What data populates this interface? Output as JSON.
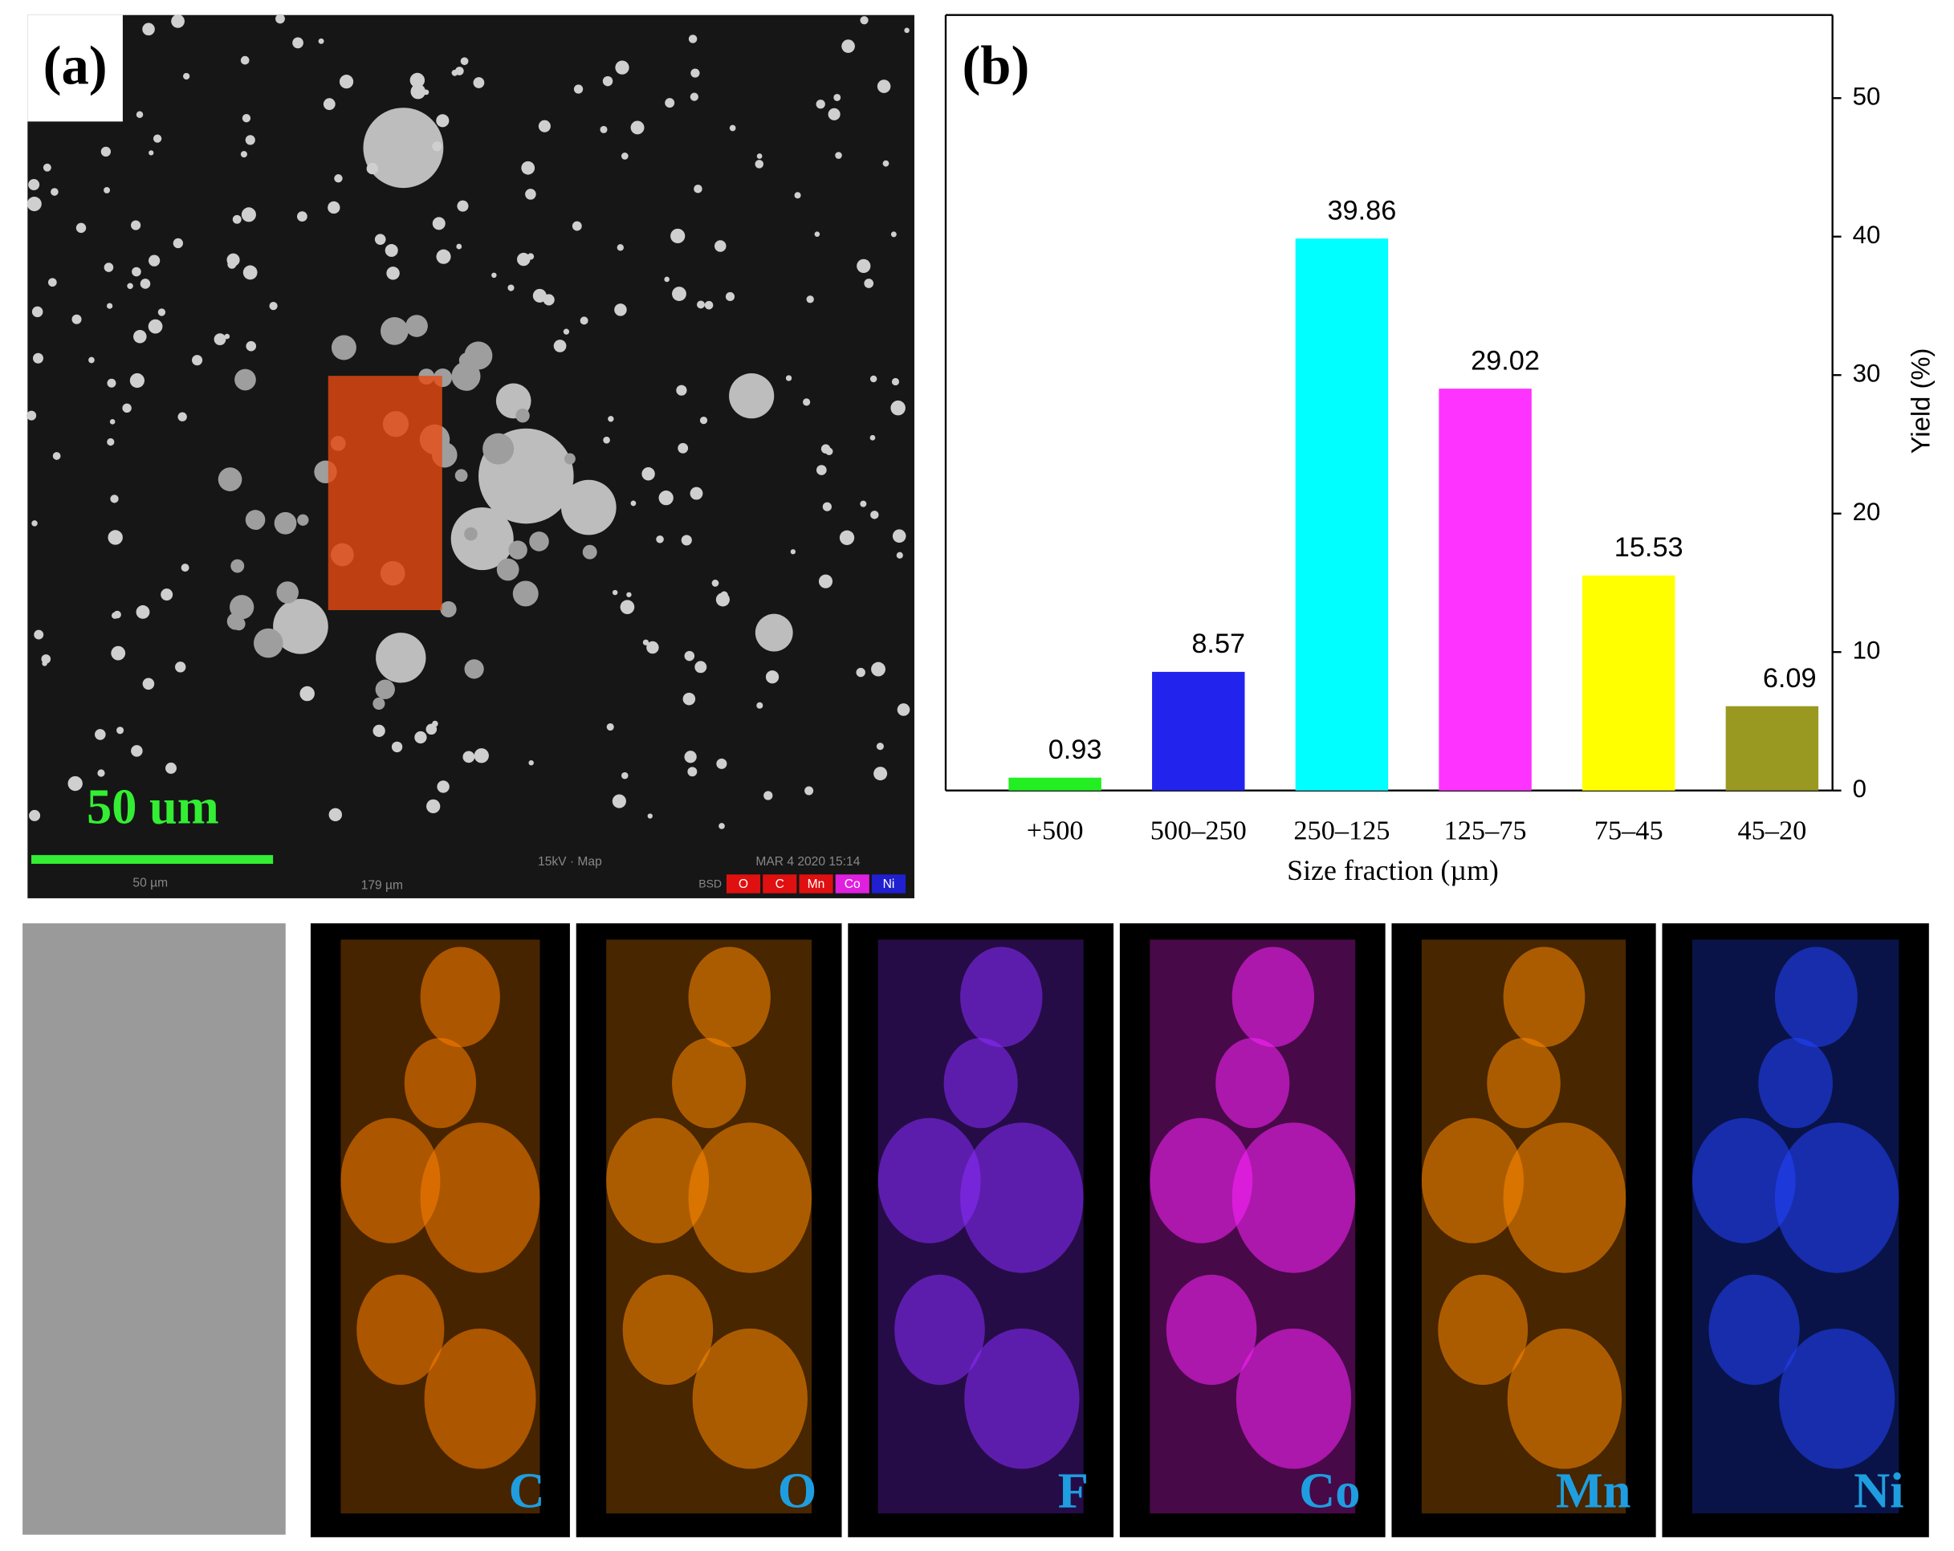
{
  "panel_a": {
    "label": "(a)",
    "scale_text": "50 um",
    "footer": [
      "50 µm",
      "179 µm",
      "15kV · Map",
      "MAR 4 2020 15:14",
      "BSD"
    ],
    "map_legend": [
      {
        "name": "O",
        "color": "#e01010"
      },
      {
        "name": "C",
        "color": "#e01010"
      },
      {
        "name": "Mn",
        "color": "#e01010"
      },
      {
        "name": "Co",
        "color": "#e020e0"
      },
      {
        "name": "Ni",
        "color": "#2020d0"
      }
    ]
  },
  "chart_data": {
    "type": "bar",
    "panel_label": "(b)",
    "categories": [
      "+500",
      "500–250",
      "250–125",
      "125–75",
      "75–45",
      "45–20"
    ],
    "values": [
      0.93,
      8.57,
      39.86,
      29.02,
      15.53,
      6.09
    ],
    "colors": [
      "#22ee22",
      "#2323ee",
      "#00ffff",
      "#ff33ff",
      "#ffff00",
      "#999922"
    ],
    "x_label": "Size fraction (µm)",
    "y_label": "Yield (%)",
    "ylim": [
      0,
      56
    ],
    "yticks": [
      0,
      10,
      20,
      30,
      40,
      50
    ],
    "y_axis_side": "right"
  },
  "element_maps": [
    {
      "label": "C",
      "color": "#ff8000"
    },
    {
      "label": "O",
      "color": "#ff8800"
    },
    {
      "label": "F",
      "color": "#8a2cff"
    },
    {
      "label": "Co",
      "color": "#ff22ff"
    },
    {
      "label": "Mn",
      "color": "#ff8800"
    },
    {
      "label": "Ni",
      "color": "#2244ff"
    }
  ]
}
